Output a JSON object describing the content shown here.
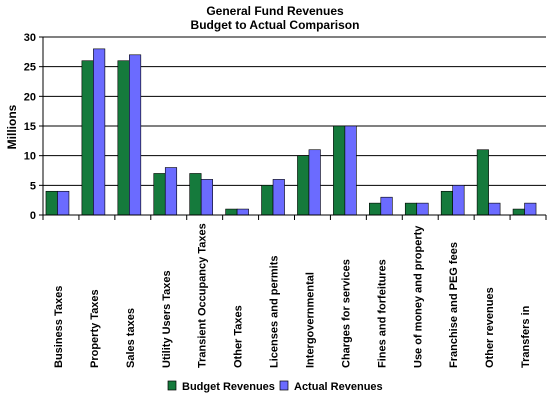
{
  "chart_data": {
    "type": "bar",
    "title": "General Fund Revenues",
    "subtitle": "Budget to Actual Comparison",
    "ylabel": "Millions",
    "xlabel": "",
    "ylim": [
      0,
      30
    ],
    "yticks": [
      0,
      5,
      10,
      15,
      20,
      25,
      30
    ],
    "grid": true,
    "legend_position": "bottom-center",
    "categories": [
      "Business Taxes",
      "Property Taxes",
      "Sales taxes",
      "Utility Users Taxes",
      "Transient Occupancy Taxes",
      "Other Taxes",
      "Licenses and permits",
      "Intergovernmental",
      "Charges for services",
      "Fines and forfeitures",
      "Use of money and property",
      "Franchise and PEG fees",
      "Other revenues",
      "Transfers in"
    ],
    "series": [
      {
        "name": "Budget Revenues",
        "color": "#157a3c",
        "values": [
          4,
          26,
          26,
          7,
          7,
          1,
          5,
          10,
          15,
          2,
          2,
          4,
          11,
          1
        ]
      },
      {
        "name": "Actual Revenues",
        "color": "#6b6bff",
        "values": [
          4,
          28,
          27,
          8,
          6,
          1,
          6,
          11,
          15,
          3,
          2,
          5,
          2,
          2
        ]
      }
    ]
  }
}
